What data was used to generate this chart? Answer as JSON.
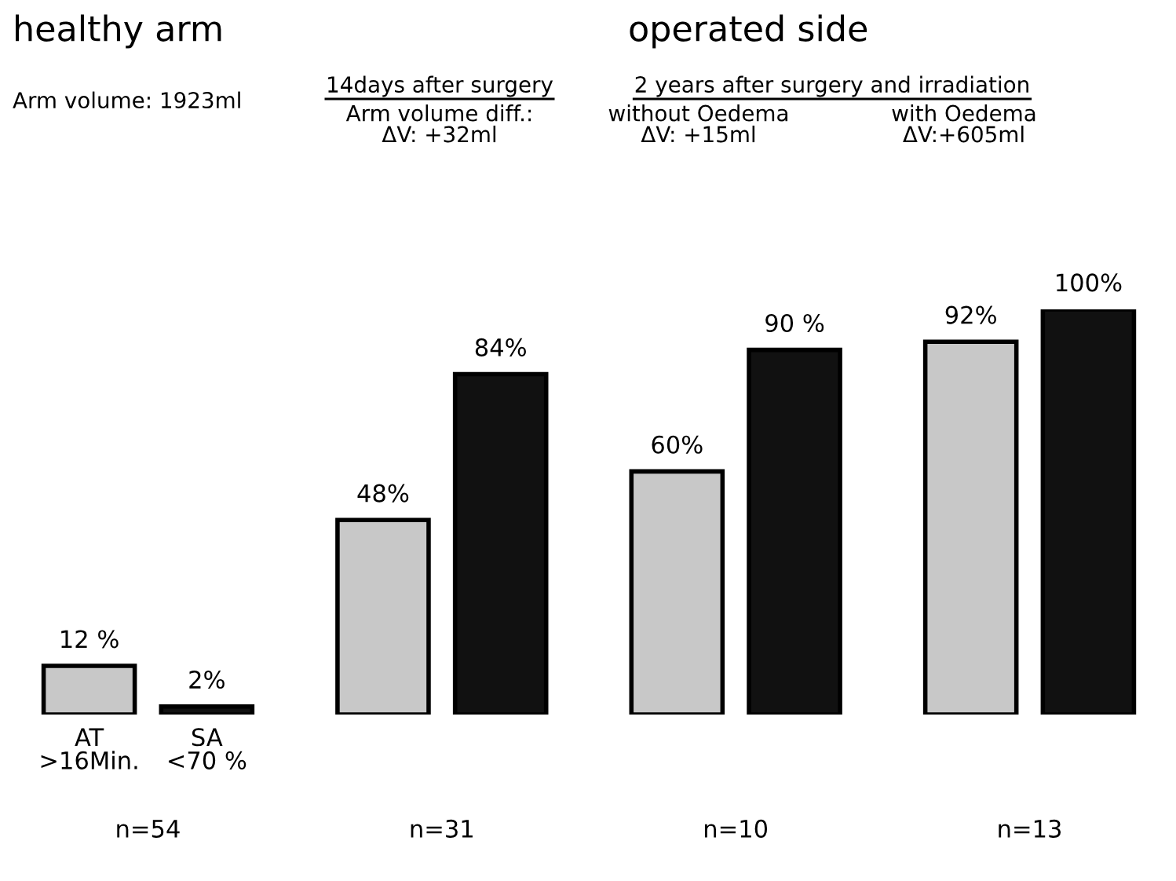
{
  "chart_data": {
    "type": "bar",
    "categories": [
      "n=54",
      "n=31",
      "n=10",
      "n=13"
    ],
    "series": [
      {
        "name": "AT\n>16Min.",
        "color": "#c8c8c8",
        "values": [
          12,
          48,
          60,
          92
        ],
        "value_labels": [
          "12 %",
          "48%",
          "60%",
          "92%"
        ]
      },
      {
        "name": "SA\n<70 %",
        "color": "#111111",
        "values": [
          2,
          84,
          90,
          100
        ],
        "value_labels": [
          "2%",
          "84%",
          "90 %",
          "100%"
        ]
      }
    ],
    "annotations": [
      "healthy arm",
      "operated side",
      "Arm volume: 1923ml",
      "14days after surgery",
      "Arm volume diff.:\nΔV: +32ml",
      "2 years after surgery and irradiation",
      "without Oedema\nΔV: +15ml",
      "with Oedema\nΔV:+605ml"
    ],
    "legend": false,
    "grid": false
  }
}
